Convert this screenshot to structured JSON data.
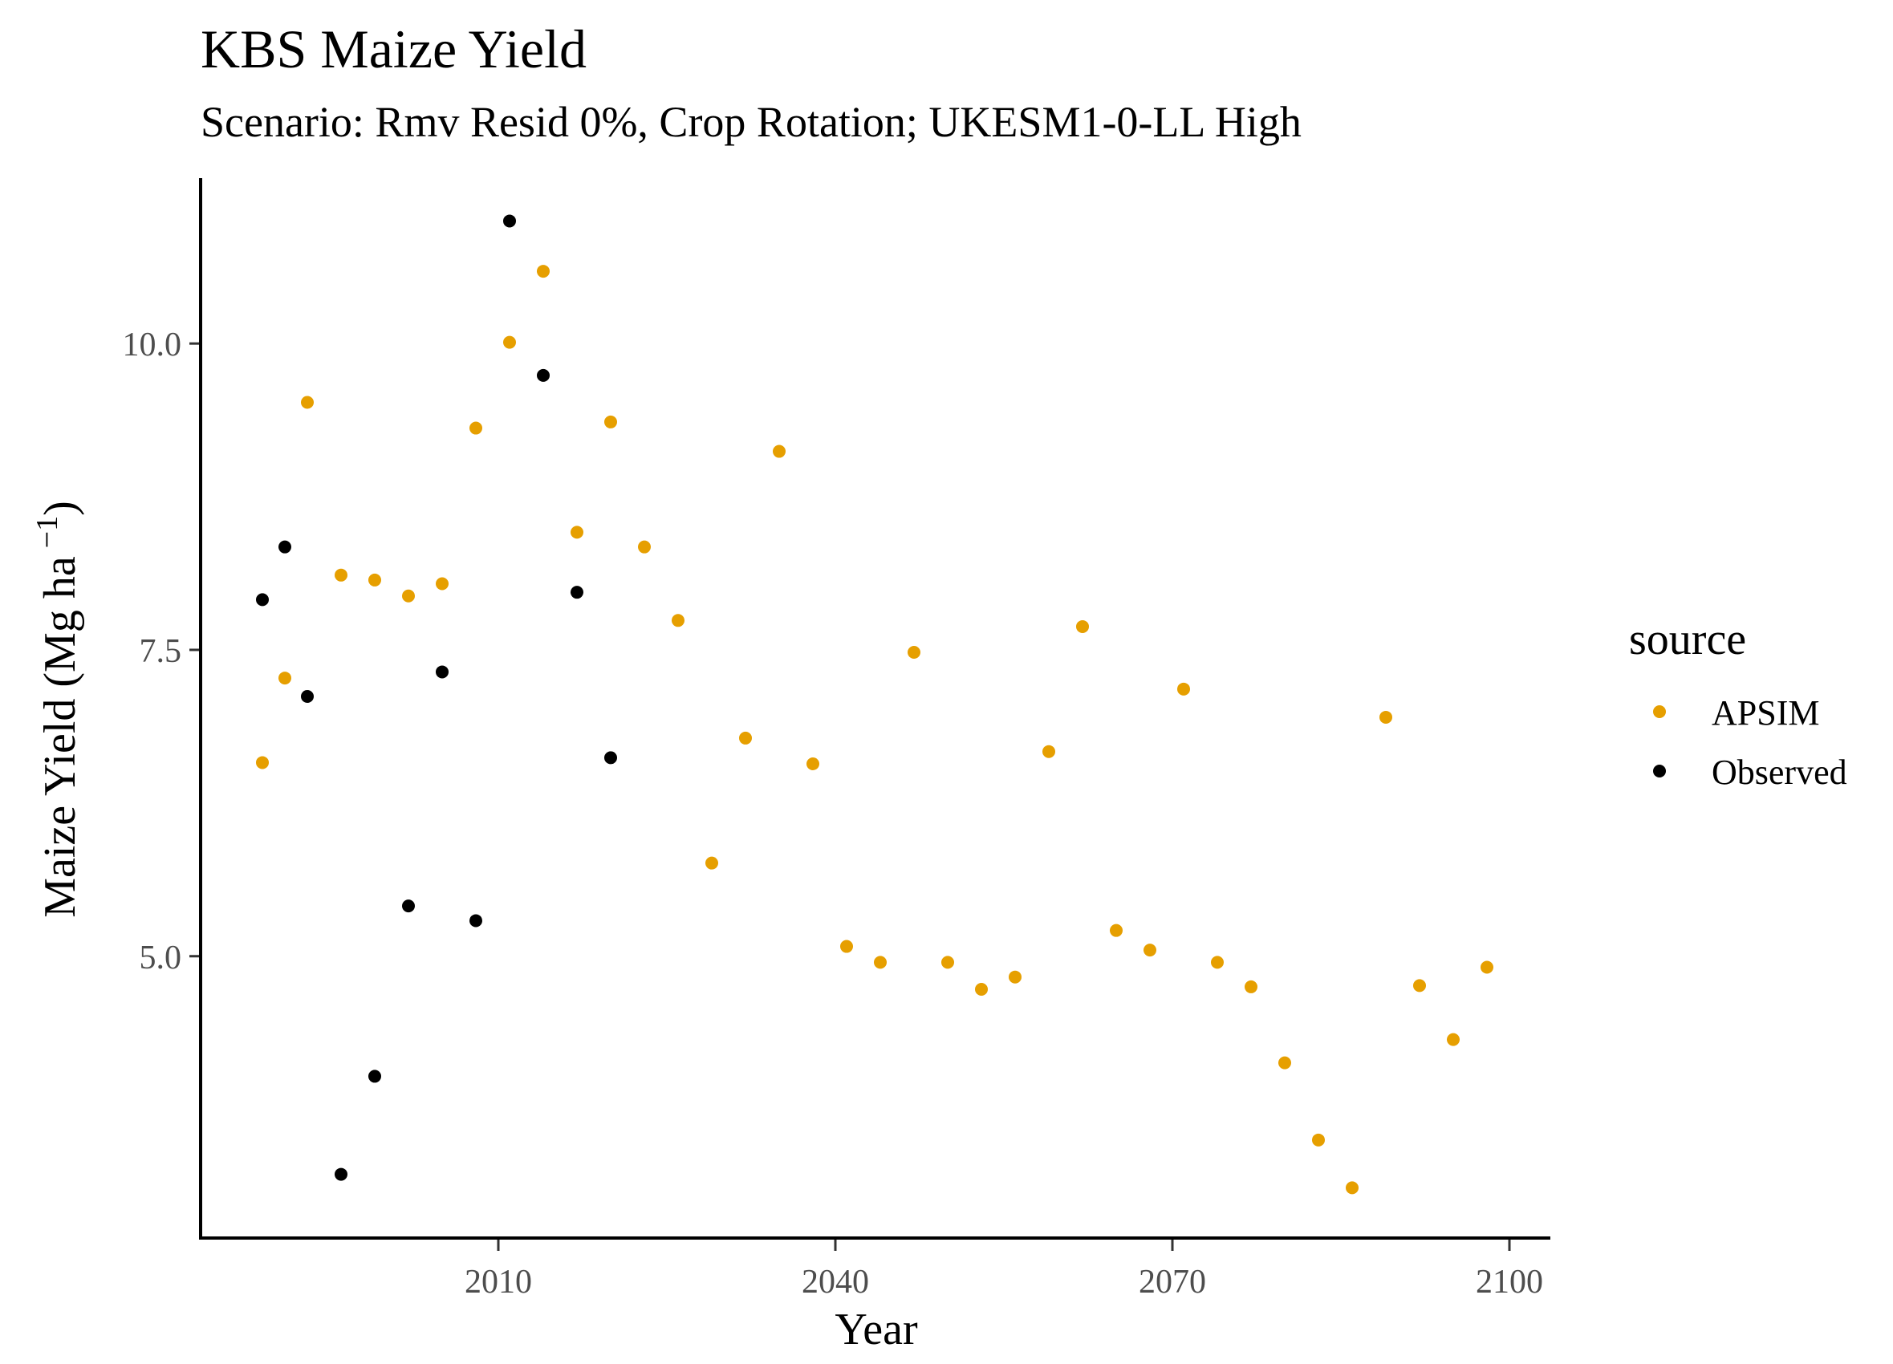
{
  "chart_data": {
    "type": "scatter",
    "title": "KBS Maize Yield",
    "subtitle": "Scenario: Rmv Resid 0%, Crop Rotation; UKESM1-0-LL High",
    "xlabel": "Year",
    "ylabel_main": "Maize Yield (Mg ha",
    "ylabel_sup": "−1",
    "ylabel_close": ")",
    "xlim": [
      1983.5,
      2103.5
    ],
    "ylim": [
      2.7,
      11.35
    ],
    "x_ticks": [
      2010,
      2040,
      2070,
      2100
    ],
    "x_tick_labels": [
      "2010",
      "2040",
      "2070",
      "2100"
    ],
    "y_ticks": [
      5.0,
      7.5,
      10.0
    ],
    "y_tick_labels": [
      "5.0",
      "7.5",
      "10.0"
    ],
    "grid": false,
    "legend": {
      "title": "source",
      "placement": "right",
      "entries": [
        "APSIM",
        "Observed"
      ]
    },
    "series": [
      {
        "name": "APSIM",
        "color": "#E69F00",
        "points": [
          [
            1989,
            6.58
          ],
          [
            1991,
            7.27
          ],
          [
            1993,
            9.52
          ],
          [
            1996,
            8.11
          ],
          [
            1999,
            8.07
          ],
          [
            2002,
            7.94
          ],
          [
            2005,
            8.04
          ],
          [
            2008,
            9.31
          ],
          [
            2011,
            10.01
          ],
          [
            2014,
            10.59
          ],
          [
            2017,
            8.46
          ],
          [
            2020,
            9.36
          ],
          [
            2023,
            8.34
          ],
          [
            2026,
            7.74
          ],
          [
            2029,
            5.76
          ],
          [
            2032,
            6.78
          ],
          [
            2035,
            9.12
          ],
          [
            2038,
            6.57
          ],
          [
            2041,
            5.08
          ],
          [
            2044,
            4.95
          ],
          [
            2047,
            7.48
          ],
          [
            2050,
            4.95
          ],
          [
            2053,
            4.73
          ],
          [
            2056,
            4.83
          ],
          [
            2059,
            6.67
          ],
          [
            2062,
            7.69
          ],
          [
            2065,
            5.21
          ],
          [
            2068,
            5.05
          ],
          [
            2071,
            7.18
          ],
          [
            2074,
            4.95
          ],
          [
            2077,
            4.75
          ],
          [
            2080,
            4.13
          ],
          [
            2083,
            3.5
          ],
          [
            2086,
            3.11
          ],
          [
            2089,
            6.95
          ],
          [
            2092,
            4.76
          ],
          [
            2095,
            4.32
          ],
          [
            2098,
            4.91
          ]
        ]
      },
      {
        "name": "Observed",
        "color": "#000000",
        "points": [
          [
            1989,
            7.91
          ],
          [
            1991,
            8.34
          ],
          [
            1993,
            7.12
          ],
          [
            1996,
            3.22
          ],
          [
            1999,
            4.02
          ],
          [
            2002,
            5.41
          ],
          [
            2005,
            7.32
          ],
          [
            2008,
            5.29
          ],
          [
            2011,
            11.0
          ],
          [
            2014,
            9.74
          ],
          [
            2017,
            7.97
          ],
          [
            2020,
            6.62
          ]
        ]
      }
    ]
  }
}
